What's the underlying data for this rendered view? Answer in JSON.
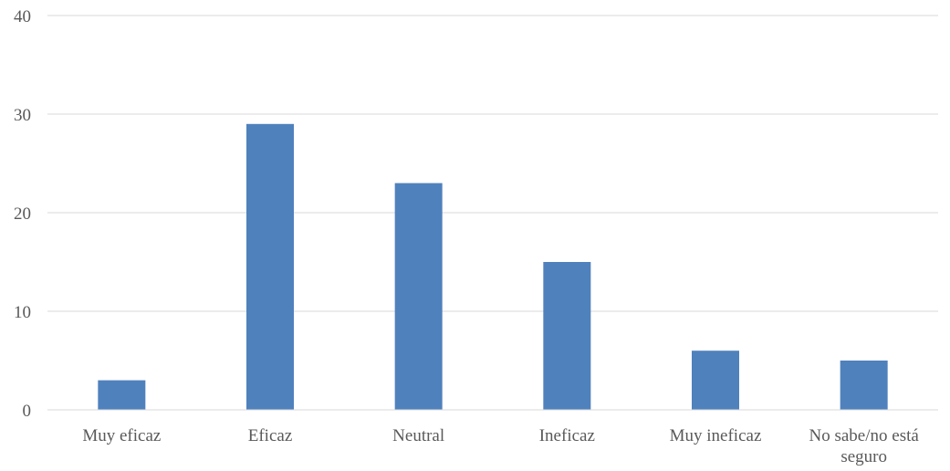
{
  "chart_data": {
    "type": "bar",
    "title": "",
    "xlabel": "",
    "ylabel": "",
    "categories": [
      [
        "Muy eficaz"
      ],
      [
        "Eficaz"
      ],
      [
        "Neutral"
      ],
      [
        "Ineficaz"
      ],
      [
        "Muy ineficaz"
      ],
      [
        "No sabe/no está",
        "seguro"
      ]
    ],
    "values": [
      3,
      29,
      23,
      15,
      6,
      5
    ],
    "ylim": [
      0,
      40
    ],
    "yticks": [
      0,
      10,
      20,
      30,
      40
    ],
    "grid": true,
    "legend": "none",
    "bar_color": "#4f81bd"
  }
}
